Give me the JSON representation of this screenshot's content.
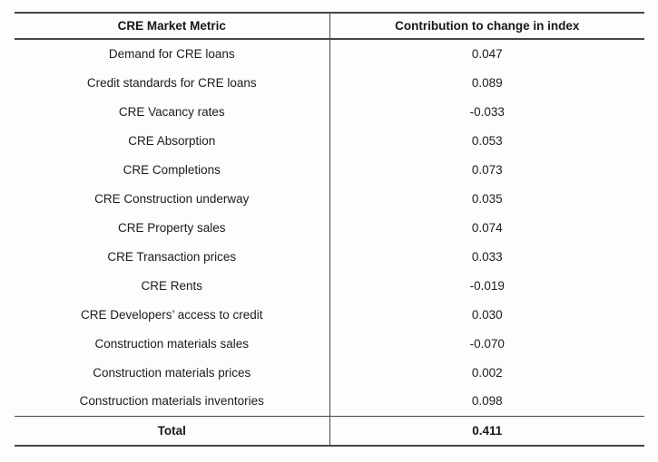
{
  "table": {
    "header": {
      "metric": "CRE Market Metric",
      "contribution": "Contribution to change in index"
    },
    "rows": [
      {
        "metric": "Demand for CRE loans",
        "value": "0.047"
      },
      {
        "metric": "Credit standards for CRE loans",
        "value": "0.089"
      },
      {
        "metric": "CRE Vacancy rates",
        "value": "-0.033"
      },
      {
        "metric": "CRE Absorption",
        "value": "0.053"
      },
      {
        "metric": "CRE Completions",
        "value": "0.073"
      },
      {
        "metric": "CRE Construction underway",
        "value": "0.035"
      },
      {
        "metric": "CRE Property sales",
        "value": "0.074"
      },
      {
        "metric": "CRE Transaction prices",
        "value": "0.033"
      },
      {
        "metric": "CRE Rents",
        "value": "-0.019"
      },
      {
        "metric": "CRE Developers’ access to credit",
        "value": "0.030"
      },
      {
        "metric": "Construction materials sales",
        "value": "-0.070"
      },
      {
        "metric": "Construction materials prices",
        "value": "0.002"
      },
      {
        "metric": "Construction materials inventories",
        "value": "0.098"
      }
    ],
    "total": {
      "label": "Total",
      "value": "0.411"
    }
  },
  "colors": {
    "border": "#454545",
    "text": "#1c1c1c",
    "background": "#fdfdfd"
  }
}
